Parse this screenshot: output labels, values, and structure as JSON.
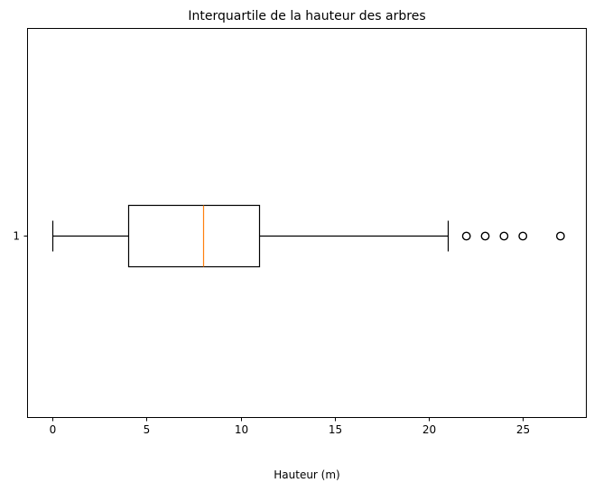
{
  "chart_data": {
    "type": "boxplot",
    "orientation": "horizontal",
    "title": "Interquartile de la hauteur des arbres",
    "xlabel": "Hauteur (m)",
    "ylabel": "",
    "xlim": [
      -1.35,
      28.35
    ],
    "x_ticks": [
      0,
      5,
      10,
      15,
      20,
      25
    ],
    "y_ticks": [
      "1"
    ],
    "grid": false,
    "box": {
      "category": "1",
      "whisker_low": 0,
      "q1": 4,
      "median": 8,
      "q3": 11,
      "whisker_high": 21,
      "outliers": [
        22,
        23,
        24,
        25,
        27
      ]
    },
    "colors": {
      "box": "#000000",
      "median": "#ff7f0e",
      "outlier": "#000000"
    }
  }
}
